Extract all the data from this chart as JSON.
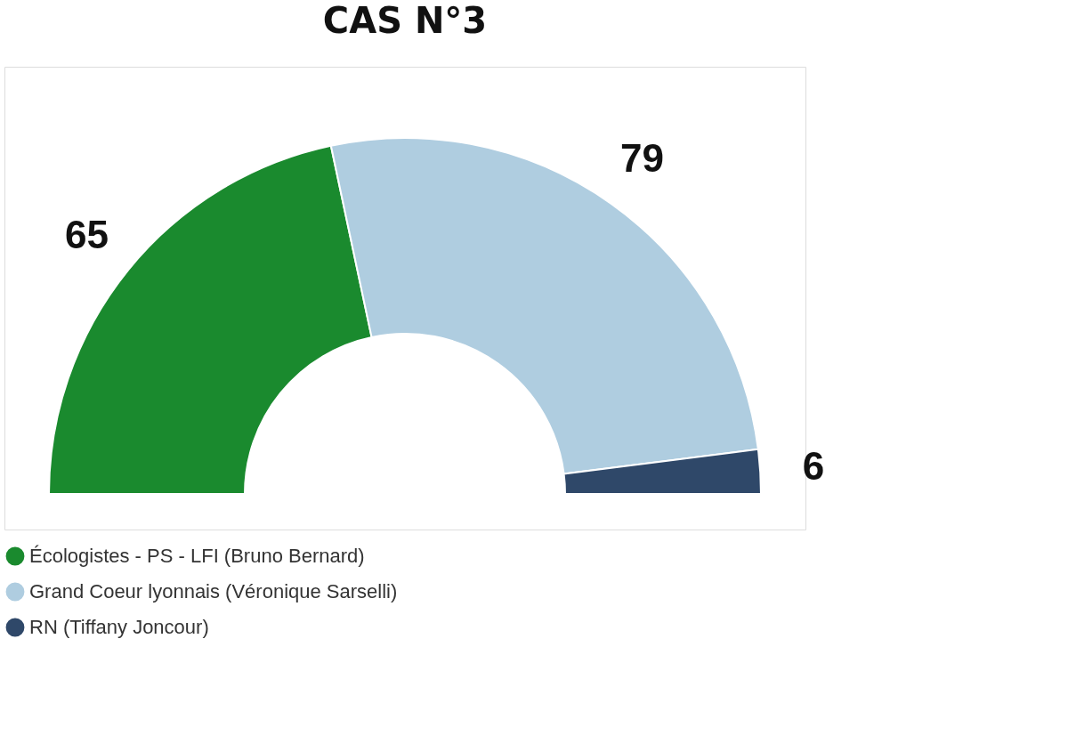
{
  "chart_data": {
    "type": "donut",
    "title": "CAS N°3",
    "categories": [
      "Écologistes - PS - LFI (Bruno Bernard)",
      "Grand Coeur lyonnais (Véronique Sarselli)",
      "RN (Tiffany Joncour)"
    ],
    "values": [
      65,
      79,
      6
    ],
    "colors": [
      "#1a8a2e",
      "#afcde0",
      "#2f4869"
    ],
    "data_labels": true,
    "legend": "bottom left"
  }
}
